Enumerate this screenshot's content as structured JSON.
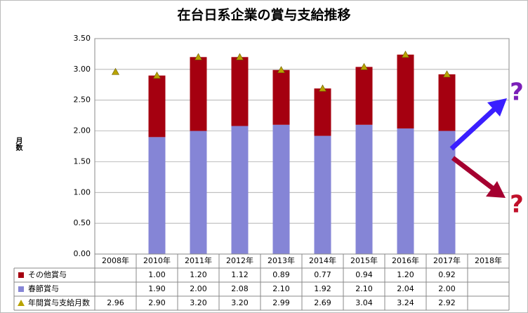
{
  "chart_data": {
    "type": "bar",
    "title": "在台日系企業の賞与支給推移",
    "y_label": "月数",
    "categories": [
      "2008年",
      "2010年",
      "2011年",
      "2012年",
      "2013年",
      "2014年",
      "2015年",
      "2016年",
      "2017年",
      "2018年"
    ],
    "stacked": true,
    "grid": true,
    "ylim": [
      0,
      3.5
    ],
    "yticks": [
      {
        "value": 0,
        "label": "0.00"
      },
      {
        "value": 0.5,
        "label": "0.50"
      },
      {
        "value": 1,
        "label": "1.00"
      },
      {
        "value": 1.5,
        "label": "1.50"
      },
      {
        "value": 2,
        "label": "2.00"
      },
      {
        "value": 2.5,
        "label": "2.50"
      },
      {
        "value": 3,
        "label": "3.00"
      },
      {
        "value": 3.5,
        "label": "3.50"
      }
    ],
    "series": [
      {
        "name": "その他賞与",
        "type": "bar",
        "color": "#a50010",
        "values": [
          null,
          1.0,
          1.2,
          1.12,
          0.89,
          0.77,
          0.94,
          1.2,
          0.92,
          null
        ],
        "value_labels": [
          null,
          "1.00",
          "1.20",
          "1.12",
          "0.89",
          "0.77",
          "0.94",
          "1.20",
          "0.92",
          null
        ]
      },
      {
        "name": "春節賞与",
        "type": "bar",
        "color": "#8585d6",
        "values": [
          null,
          1.9,
          2.0,
          2.08,
          2.1,
          1.92,
          2.1,
          2.04,
          2.0,
          null
        ],
        "value_labels": [
          null,
          "1.90",
          "2.00",
          "2.08",
          "2.10",
          "1.92",
          "2.10",
          "2.04",
          "2.00",
          null
        ]
      },
      {
        "name": "年間賞与支給月数",
        "type": "marker",
        "color": "#b8a300",
        "values": [
          2.96,
          2.9,
          3.2,
          3.2,
          2.99,
          2.69,
          3.04,
          3.24,
          2.92,
          null
        ],
        "value_labels": [
          "2.96",
          "2.90",
          "3.20",
          "3.20",
          "2.99",
          "2.69",
          "3.04",
          "3.24",
          "2.92",
          null
        ]
      }
    ],
    "annotations": [
      {
        "text": "?",
        "color": "#7a1fb8"
      },
      {
        "text": "?",
        "color": "#c0102a"
      }
    ]
  }
}
